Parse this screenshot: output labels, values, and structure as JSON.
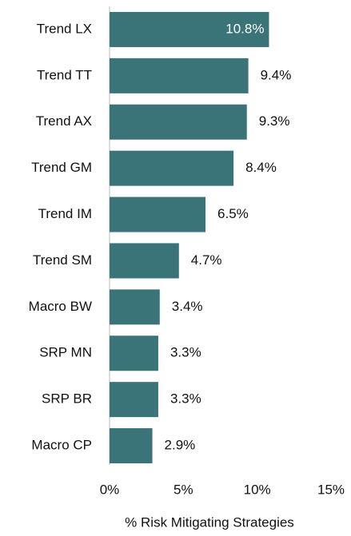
{
  "chart_data": {
    "type": "hbar",
    "categories": [
      "Trend LX",
      "Trend TT",
      "Trend AX",
      "Trend GM",
      "Trend IM",
      "Trend SM",
      "Macro BW",
      "SRP MN",
      "SRP BR",
      "Macro CP"
    ],
    "values": [
      10.8,
      9.4,
      9.3,
      8.4,
      6.5,
      4.7,
      3.4,
      3.3,
      3.3,
      2.9
    ],
    "value_labels": [
      "10.8%",
      "9.4%",
      "9.3%",
      "8.4%",
      "6.5%",
      "4.7%",
      "3.4%",
      "3.3%",
      "3.3%",
      "2.9%"
    ],
    "color": "#3a7478",
    "xlim": [
      0,
      15
    ],
    "xticks": [
      {
        "value": 0,
        "label": "0%"
      },
      {
        "value": 5,
        "label": "5%"
      },
      {
        "value": 10,
        "label": "10%"
      },
      {
        "value": 15,
        "label": "15%"
      }
    ],
    "x_label": "% Risk Mitigating Strategies"
  }
}
